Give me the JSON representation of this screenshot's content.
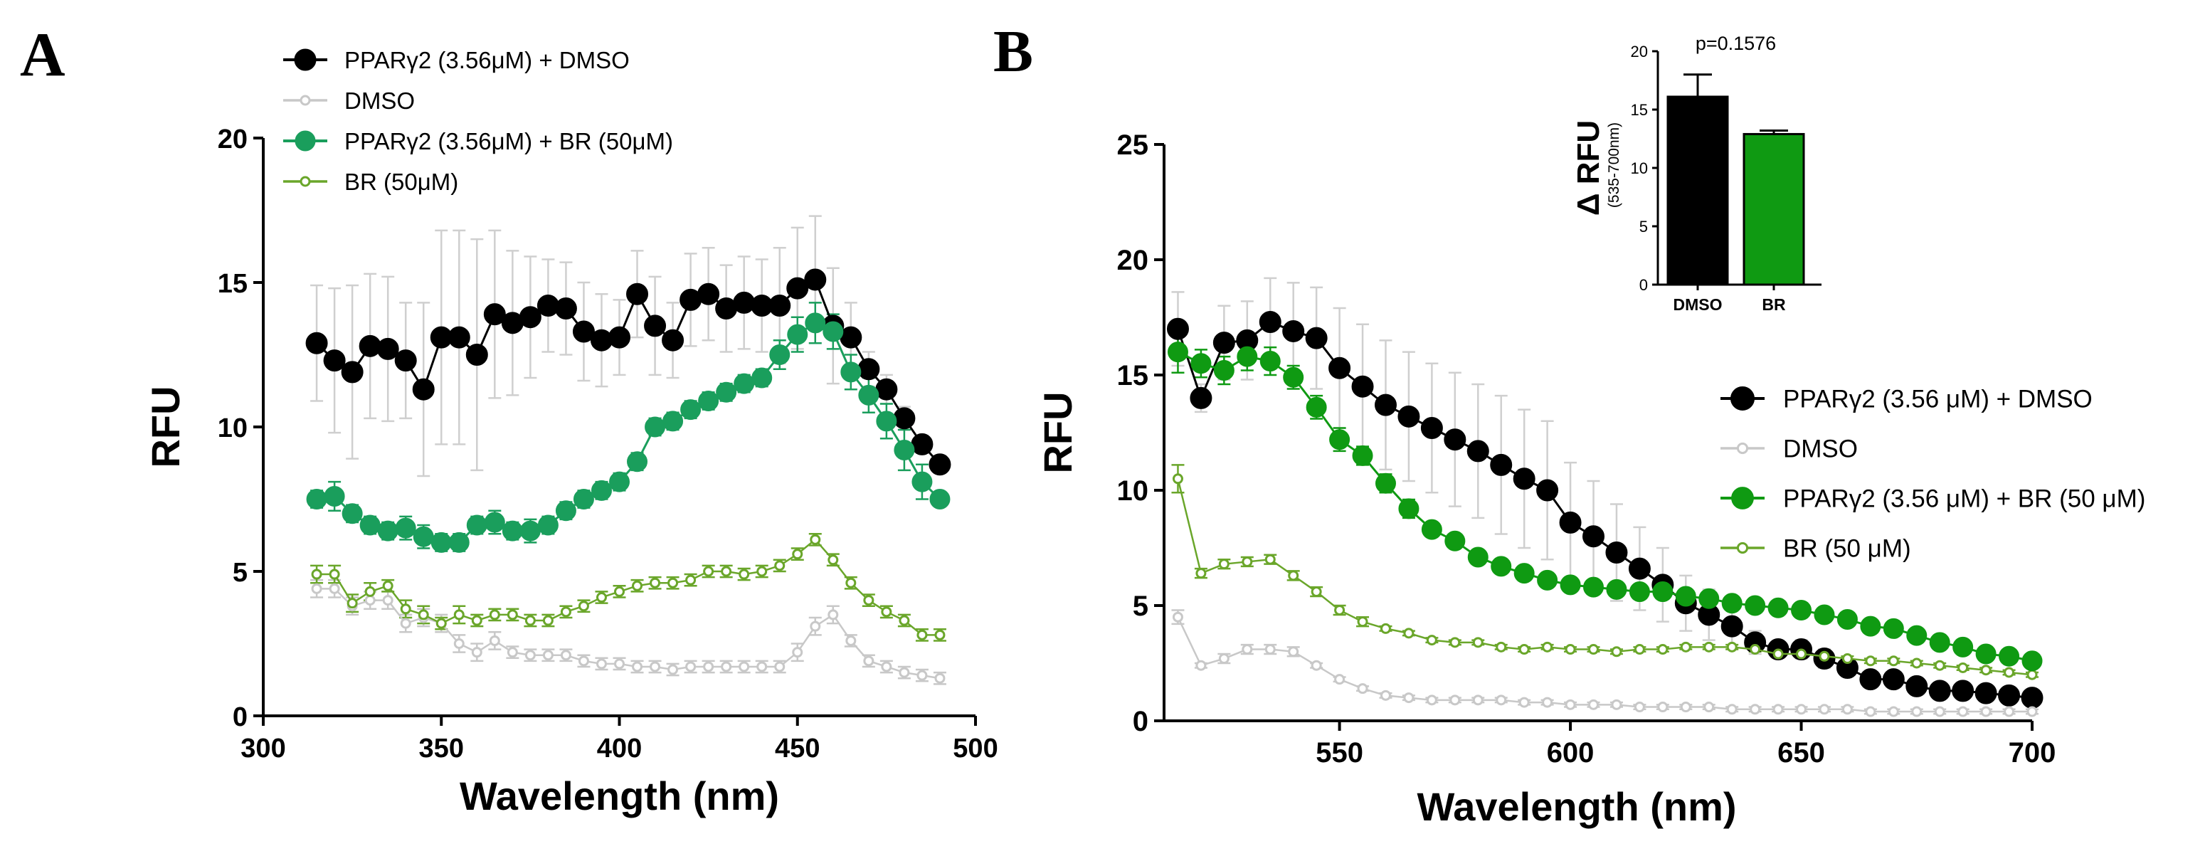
{
  "panel_letters": {
    "a": "A",
    "b": "B"
  },
  "colors": {
    "black": "#000000",
    "grey": "#c8c8c8",
    "errbar_grey": "#cfcfcf",
    "teal_green": "#1a9e5c",
    "olive_green": "#6aa62a",
    "bright_green": "#0f9a12"
  },
  "chart_data": [
    {
      "id": "A",
      "type": "line",
      "title": "",
      "xlabel": "Wavelength (nm)",
      "ylabel": "RFU",
      "xlim": [
        300,
        500
      ],
      "ylim": [
        0,
        20
      ],
      "xticks": [
        300,
        350,
        400,
        450,
        500
      ],
      "yticks": [
        0,
        5,
        10,
        15,
        20
      ],
      "grid": false,
      "legend_position": "top-left",
      "x": [
        315,
        320,
        325,
        330,
        335,
        340,
        345,
        350,
        355,
        360,
        365,
        370,
        375,
        380,
        385,
        390,
        395,
        400,
        405,
        410,
        415,
        420,
        425,
        430,
        435,
        440,
        445,
        450,
        455,
        460,
        465,
        470,
        475,
        480,
        485,
        490
      ],
      "series": [
        {
          "name": "PPARγ2 (3.56μM) + DMSO",
          "style": "large-black",
          "values": [
            12.9,
            12.3,
            11.9,
            12.8,
            12.7,
            12.3,
            11.3,
            13.1,
            13.1,
            12.5,
            13.9,
            13.6,
            13.8,
            14.2,
            14.1,
            13.3,
            13.0,
            13.1,
            14.6,
            13.5,
            13.0,
            14.4,
            14.6,
            14.1,
            14.3,
            14.2,
            14.2,
            14.8,
            15.1,
            13.5,
            13.1,
            12.0,
            11.3,
            10.3,
            9.4,
            8.7
          ],
          "errors": [
            2.0,
            2.5,
            3.0,
            2.5,
            2.5,
            2.0,
            3.0,
            3.7,
            3.7,
            4.0,
            2.9,
            2.5,
            2.1,
            1.6,
            1.6,
            1.7,
            1.6,
            1.3,
            1.5,
            1.7,
            1.3,
            1.6,
            1.6,
            1.5,
            1.6,
            1.6,
            2.0,
            2.1,
            2.2,
            2.0,
            1.2,
            0.6,
            0.5,
            0.4,
            0.3,
            0.3
          ]
        },
        {
          "name": "DMSO",
          "style": "small-grey",
          "values": [
            4.4,
            4.4,
            3.8,
            4.0,
            4.0,
            3.2,
            3.4,
            3.2,
            2.5,
            2.2,
            2.6,
            2.2,
            2.1,
            2.1,
            2.1,
            1.9,
            1.8,
            1.8,
            1.7,
            1.7,
            1.6,
            1.7,
            1.7,
            1.7,
            1.7,
            1.7,
            1.7,
            2.2,
            3.1,
            3.5,
            2.6,
            1.9,
            1.7,
            1.5,
            1.4,
            1.3
          ],
          "errors": [
            0.3,
            0.3,
            0.3,
            0.3,
            0.3,
            0.3,
            0.3,
            0.3,
            0.3,
            0.3,
            0.3,
            0.2,
            0.2,
            0.2,
            0.2,
            0.2,
            0.2,
            0.2,
            0.2,
            0.2,
            0.2,
            0.2,
            0.2,
            0.2,
            0.2,
            0.2,
            0.2,
            0.3,
            0.3,
            0.3,
            0.2,
            0.2,
            0.2,
            0.2,
            0.2,
            0.2
          ]
        },
        {
          "name": "PPARγ2 (3.56μM) + BR (50μM)",
          "style": "large-teal",
          "values": [
            7.5,
            7.6,
            7.0,
            6.6,
            6.4,
            6.5,
            6.2,
            6.0,
            6.0,
            6.6,
            6.7,
            6.4,
            6.4,
            6.6,
            7.1,
            7.5,
            7.8,
            8.1,
            8.8,
            10.0,
            10.2,
            10.6,
            10.9,
            11.2,
            11.5,
            11.7,
            12.5,
            13.2,
            13.6,
            13.3,
            11.9,
            11.1,
            10.2,
            9.2,
            8.1,
            7.5
          ],
          "errors": [
            0.3,
            0.5,
            0.3,
            0.3,
            0.3,
            0.4,
            0.4,
            0.3,
            0.3,
            0.3,
            0.4,
            0.3,
            0.4,
            0.3,
            0.3,
            0.3,
            0.3,
            0.3,
            0.3,
            0.3,
            0.3,
            0.3,
            0.3,
            0.3,
            0.3,
            0.3,
            0.5,
            0.6,
            0.7,
            0.6,
            0.6,
            0.6,
            0.6,
            0.7,
            0.6,
            0.2
          ]
        },
        {
          "name": "BR (50μM)",
          "style": "small-olive",
          "values": [
            4.9,
            4.9,
            3.9,
            4.3,
            4.5,
            3.7,
            3.5,
            3.2,
            3.5,
            3.3,
            3.5,
            3.5,
            3.3,
            3.3,
            3.6,
            3.8,
            4.1,
            4.3,
            4.5,
            4.6,
            4.6,
            4.7,
            5.0,
            5.0,
            4.9,
            5.0,
            5.2,
            5.6,
            6.1,
            5.4,
            4.6,
            4.0,
            3.6,
            3.3,
            2.8,
            2.8
          ],
          "errors": [
            0.3,
            0.3,
            0.3,
            0.3,
            0.2,
            0.3,
            0.3,
            0.2,
            0.3,
            0.2,
            0.2,
            0.2,
            0.2,
            0.2,
            0.2,
            0.2,
            0.2,
            0.2,
            0.2,
            0.2,
            0.2,
            0.2,
            0.2,
            0.2,
            0.2,
            0.2,
            0.2,
            0.2,
            0.2,
            0.2,
            0.2,
            0.2,
            0.2,
            0.2,
            0.2,
            0.2
          ]
        }
      ]
    },
    {
      "id": "B",
      "type": "line",
      "title": "",
      "xlabel": "Wavelength (nm)",
      "ylabel": "RFU",
      "xlim": [
        512,
        700
      ],
      "ylim": [
        0,
        25
      ],
      "xticks": [
        550,
        600,
        650,
        700
      ],
      "yticks": [
        0,
        5,
        10,
        15,
        20,
        25
      ],
      "grid": false,
      "legend_position": "middle-right",
      "x": [
        515,
        520,
        525,
        530,
        535,
        540,
        545,
        550,
        555,
        560,
        565,
        570,
        575,
        580,
        585,
        590,
        595,
        600,
        605,
        610,
        615,
        620,
        625,
        630,
        635,
        640,
        645,
        650,
        655,
        660,
        665,
        670,
        675,
        680,
        685,
        690,
        695,
        700
      ],
      "series": [
        {
          "name": "PPARγ2 (3.56 μM) + DMSO",
          "style": "large-black",
          "values": [
            17.0,
            14.0,
            16.4,
            16.5,
            17.3,
            16.9,
            16.6,
            15.3,
            14.5,
            13.7,
            13.2,
            12.7,
            12.2,
            11.7,
            11.1,
            10.5,
            10.0,
            8.6,
            8.0,
            7.3,
            6.6,
            5.9,
            5.1,
            4.6,
            4.1,
            3.4,
            3.1,
            3.1,
            2.7,
            2.3,
            1.8,
            1.8,
            1.5,
            1.3,
            1.3,
            1.2,
            1.1,
            1.0
          ],
          "errors": [
            1.6,
            0.6,
            1.6,
            1.7,
            1.9,
            2.1,
            2.2,
            2.6,
            2.7,
            2.8,
            2.8,
            2.8,
            2.9,
            2.9,
            3.0,
            3.0,
            3.0,
            2.6,
            2.4,
            2.1,
            1.8,
            1.6,
            1.2,
            1.1,
            1.0,
            0.5,
            0.3,
            0.4,
            0.4,
            0.3,
            0.3,
            0.3,
            0.3,
            0.3,
            0.3,
            0.3,
            0.2,
            0.2
          ]
        },
        {
          "name": "DMSO",
          "style": "small-grey",
          "values": [
            4.5,
            2.4,
            2.7,
            3.1,
            3.1,
            3.0,
            2.4,
            1.8,
            1.4,
            1.1,
            1.0,
            0.9,
            0.9,
            0.9,
            0.9,
            0.8,
            0.8,
            0.7,
            0.7,
            0.7,
            0.6,
            0.6,
            0.6,
            0.6,
            0.5,
            0.5,
            0.5,
            0.5,
            0.5,
            0.5,
            0.4,
            0.4,
            0.4,
            0.4,
            0.4,
            0.4,
            0.4,
            0.4
          ],
          "errors": [
            0.3,
            0.1,
            0.2,
            0.2,
            0.2,
            0.2,
            0.1,
            0.1,
            0.1,
            0.1,
            0.1,
            0.1,
            0.1,
            0.1,
            0.1,
            0.1,
            0.1,
            0.1,
            0.1,
            0.1,
            0.1,
            0.1,
            0.1,
            0.1,
            0.1,
            0.1,
            0.1,
            0.1,
            0.1,
            0.1,
            0.1,
            0.1,
            0.1,
            0.1,
            0.1,
            0.1,
            0.1,
            0.1
          ]
        },
        {
          "name": "PPARγ2 (3.56 μM) + BR (50 μM)",
          "style": "large-brightgreen",
          "values": [
            16.0,
            15.5,
            15.2,
            15.8,
            15.6,
            14.9,
            13.6,
            12.2,
            11.5,
            10.3,
            9.2,
            8.3,
            7.8,
            7.1,
            6.7,
            6.4,
            6.1,
            5.9,
            5.8,
            5.7,
            5.6,
            5.6,
            5.4,
            5.3,
            5.1,
            5.0,
            4.9,
            4.8,
            4.6,
            4.4,
            4.1,
            4.0,
            3.7,
            3.4,
            3.2,
            2.9,
            2.8,
            2.6
          ],
          "errors": [
            0.9,
            0.6,
            0.6,
            0.6,
            0.6,
            0.5,
            0.5,
            0.5,
            0.4,
            0.4,
            0.4,
            0.3,
            0.3,
            0.3,
            0.3,
            0.3,
            0.3,
            0.3,
            0.3,
            0.3,
            0.3,
            0.3,
            0.3,
            0.3,
            0.3,
            0.3,
            0.3,
            0.3,
            0.3,
            0.3,
            0.3,
            0.3,
            0.3,
            0.3,
            0.3,
            0.3,
            0.3,
            0.3
          ]
        },
        {
          "name": "BR (50 μM)",
          "style": "small-olive",
          "values": [
            10.5,
            6.4,
            6.8,
            6.9,
            7.0,
            6.3,
            5.6,
            4.8,
            4.3,
            4.0,
            3.8,
            3.5,
            3.4,
            3.4,
            3.2,
            3.1,
            3.2,
            3.1,
            3.1,
            3.0,
            3.1,
            3.1,
            3.2,
            3.2,
            3.2,
            3.1,
            2.9,
            2.9,
            2.8,
            2.7,
            2.6,
            2.6,
            2.5,
            2.4,
            2.3,
            2.2,
            2.1,
            2.0
          ],
          "errors": [
            0.6,
            0.2,
            0.2,
            0.2,
            0.2,
            0.2,
            0.2,
            0.2,
            0.2,
            0.1,
            0.1,
            0.1,
            0.1,
            0.1,
            0.1,
            0.1,
            0.1,
            0.1,
            0.1,
            0.1,
            0.1,
            0.1,
            0.1,
            0.1,
            0.1,
            0.1,
            0.1,
            0.1,
            0.1,
            0.1,
            0.1,
            0.1,
            0.1,
            0.1,
            0.1,
            0.1,
            0.1,
            0.1
          ]
        }
      ],
      "inset": {
        "type": "bar",
        "ylabel": "Δ RFU",
        "ylabel_sub": "(535-700nm)",
        "annotation": "p=0.1576",
        "categories": [
          "DMSO",
          "BR"
        ],
        "values": [
          16.1,
          12.9
        ],
        "errors": [
          1.9,
          0.3
        ],
        "ylim": [
          0,
          20
        ],
        "yticks": [
          0,
          5,
          10,
          15,
          20
        ]
      }
    }
  ]
}
